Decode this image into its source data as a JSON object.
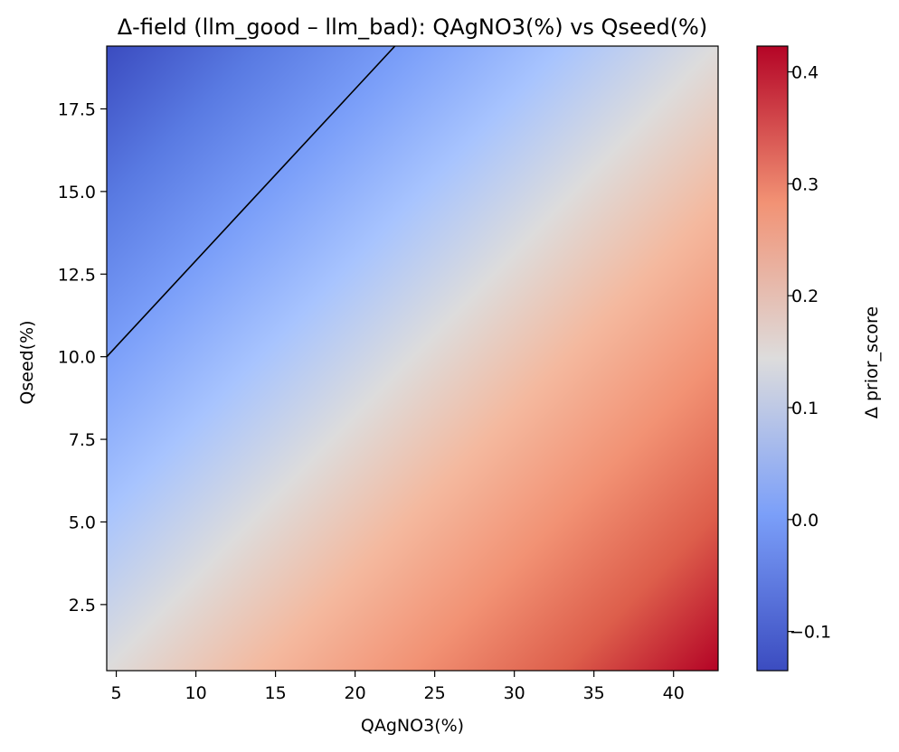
{
  "chart_data": {
    "type": "heatmap",
    "title": "Δ-field (llm_good – llm_bad): QAgNO3(%) vs Qseed(%)",
    "xlabel": "QAgNO3(%)",
    "ylabel": "Qseed(%)",
    "colorbar_label": "Δ prior_score",
    "colormap": "coolwarm",
    "xlim": [
      4.4,
      42.8
    ],
    "ylim": [
      0.5,
      19.4
    ],
    "xticks": [
      5,
      10,
      15,
      20,
      25,
      30,
      35,
      40
    ],
    "xtick_labels": [
      "5",
      "10",
      "15",
      "20",
      "25",
      "30",
      "35",
      "40"
    ],
    "yticks": [
      2.5,
      5.0,
      7.5,
      10.0,
      12.5,
      15.0,
      17.5
    ],
    "ytick_labels": [
      "2.5",
      "5.0",
      "7.5",
      "10.0",
      "12.5",
      "15.0",
      "17.5"
    ],
    "color_range": [
      -0.135,
      0.423
    ],
    "colorbar_ticks": [
      -0.1,
      0.0,
      0.1,
      0.2,
      0.3,
      0.4
    ],
    "colorbar_tick_labels": [
      "−0.1",
      "0.0",
      "0.1",
      "0.2",
      "0.3",
      "0.4"
    ],
    "field_corner_values": {
      "x_min_y_min": 0.145,
      "x_max_y_min": 0.423,
      "x_min_y_max": -0.135,
      "x_max_y_max": 0.145
    },
    "contour": {
      "level": 0.0,
      "color": "#000000",
      "points": [
        [
          4.4,
          10.0
        ],
        [
          22.5,
          19.4
        ]
      ]
    }
  }
}
